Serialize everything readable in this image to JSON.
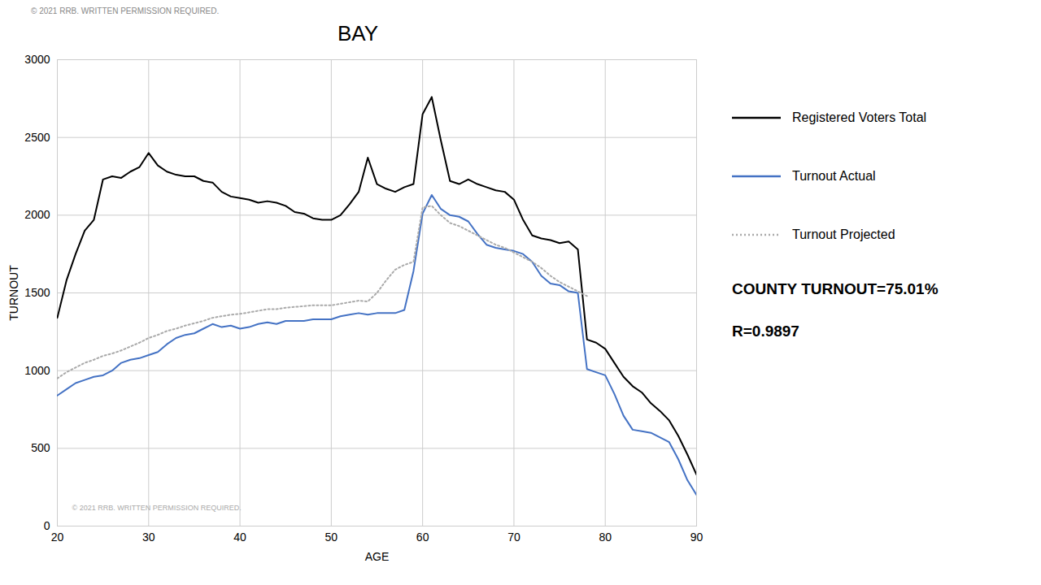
{
  "chart_data": {
    "type": "line",
    "title": "BAY",
    "xlabel": "AGE",
    "ylabel": "TURNOUT",
    "annotations": [
      "© 2021 RRB. WRITTEN PERMISSION REQUIRED.",
      "© 2021 RRB. WRITTEN PERMISSION REQUIRED.",
      "COUNTY TURNOUT=75.01%",
      "R=0.9897"
    ],
    "xlim": [
      20,
      90
    ],
    "ylim": [
      0,
      3000
    ],
    "xticks": [
      20,
      30,
      40,
      50,
      60,
      70,
      80,
      90
    ],
    "yticks": [
      0,
      500,
      1000,
      1500,
      2000,
      2500,
      3000
    ],
    "grid": true,
    "legend": "right",
    "x": [
      20,
      21,
      22,
      23,
      24,
      25,
      26,
      27,
      28,
      29,
      30,
      31,
      32,
      33,
      34,
      35,
      36,
      37,
      38,
      39,
      40,
      41,
      42,
      43,
      44,
      45,
      46,
      47,
      48,
      49,
      50,
      51,
      52,
      53,
      54,
      55,
      56,
      57,
      58,
      59,
      60,
      61,
      62,
      63,
      64,
      65,
      66,
      67,
      68,
      69,
      70,
      71,
      72,
      73,
      74,
      75,
      76,
      77,
      78,
      79,
      80,
      81,
      82,
      83,
      84,
      85,
      86,
      87,
      88,
      89,
      90
    ],
    "series": [
      {
        "name": "Registered Voters Total",
        "color": "#000000",
        "line_style": "solid",
        "values": [
          1340,
          1580,
          1750,
          1900,
          1970,
          2230,
          2250,
          2240,
          2280,
          2310,
          2400,
          2320,
          2280,
          2260,
          2250,
          2250,
          2220,
          2210,
          2150,
          2120,
          2110,
          2100,
          2080,
          2090,
          2080,
          2060,
          2020,
          2010,
          1980,
          1970,
          1970,
          2000,
          2070,
          2150,
          2370,
          2200,
          2170,
          2150,
          2180,
          2200,
          2650,
          2760,
          2480,
          2220,
          2200,
          2230,
          2200,
          2180,
          2160,
          2150,
          2100,
          1970,
          1870,
          1850,
          1840,
          1820,
          1830,
          1780,
          1200,
          1180,
          1140,
          1050,
          960,
          900,
          860,
          790,
          740,
          680,
          580,
          460,
          330
        ]
      },
      {
        "name": "Turnout Actual",
        "color": "#4472c4",
        "line_style": "solid",
        "values": [
          840,
          880,
          920,
          940,
          960,
          970,
          1000,
          1050,
          1070,
          1080,
          1100,
          1120,
          1170,
          1210,
          1230,
          1240,
          1270,
          1300,
          1280,
          1290,
          1270,
          1280,
          1300,
          1310,
          1300,
          1320,
          1320,
          1320,
          1330,
          1330,
          1330,
          1350,
          1360,
          1370,
          1360,
          1370,
          1370,
          1370,
          1390,
          1640,
          2010,
          2130,
          2040,
          2000,
          1990,
          1960,
          1880,
          1810,
          1790,
          1780,
          1770,
          1750,
          1700,
          1610,
          1560,
          1550,
          1510,
          1500,
          1010,
          990,
          970,
          850,
          710,
          620,
          610,
          600,
          570,
          540,
          430,
          295,
          200
        ]
      },
      {
        "name": "Turnout Projected",
        "color": "#aaaaaa",
        "line_style": "dotted",
        "values": [
          950,
          990,
          1020,
          1050,
          1070,
          1095,
          1110,
          1130,
          1155,
          1180,
          1210,
          1230,
          1255,
          1270,
          1290,
          1305,
          1320,
          1340,
          1350,
          1360,
          1365,
          1375,
          1385,
          1395,
          1395,
          1405,
          1410,
          1415,
          1420,
          1420,
          1420,
          1430,
          1440,
          1450,
          1445,
          1500,
          1580,
          1650,
          1680,
          1700,
          2050,
          2060,
          2000,
          1950,
          1930,
          1900,
          1870,
          1840,
          1810,
          1790,
          1760,
          1730,
          1700,
          1660,
          1610,
          1570,
          1540,
          1510,
          1480,
          null,
          null,
          null,
          null,
          null,
          null,
          null,
          null,
          null,
          null,
          null,
          null
        ]
      }
    ]
  }
}
